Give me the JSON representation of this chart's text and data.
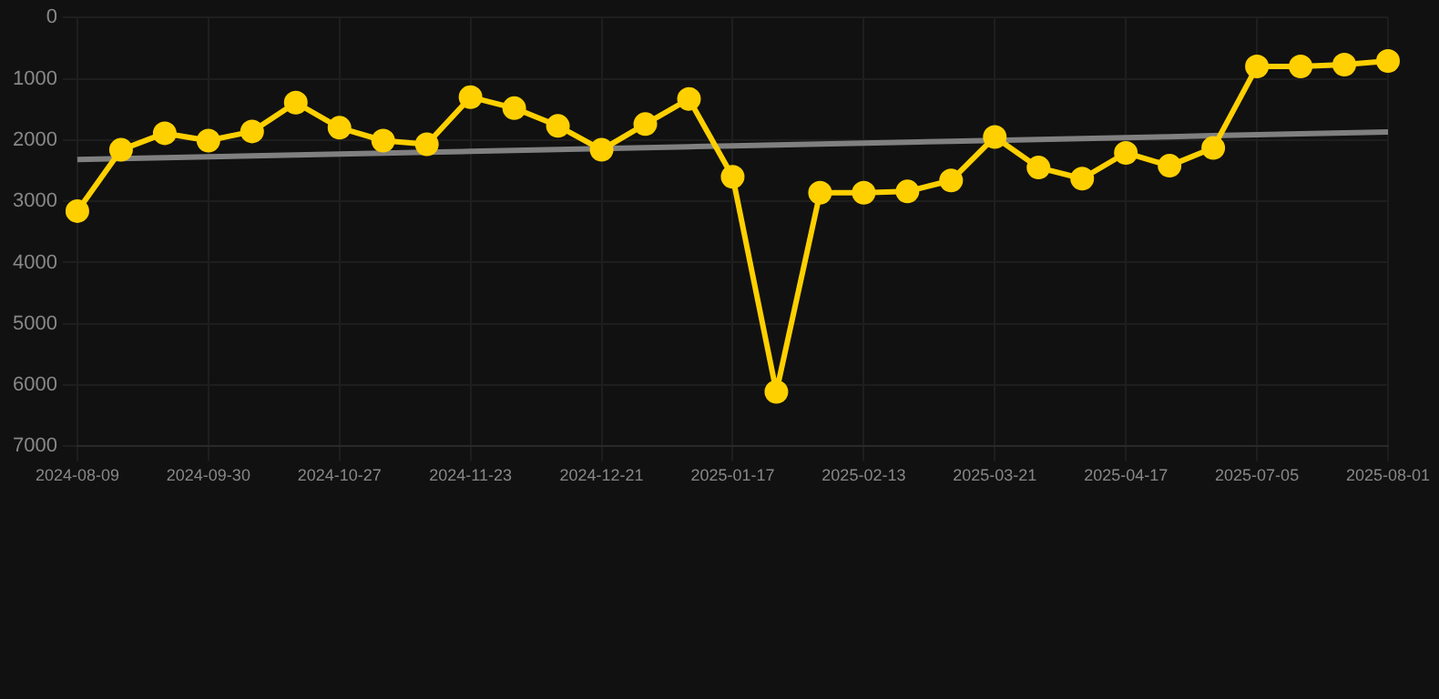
{
  "chart_data": {
    "type": "line",
    "categories": [
      "2024-08-09",
      null,
      null,
      "2024-09-30",
      null,
      null,
      "2024-10-27",
      null,
      null,
      "2024-11-23",
      null,
      null,
      "2024-12-21",
      null,
      null,
      "2025-01-17",
      null,
      null,
      "2025-02-13",
      null,
      null,
      "2025-03-21",
      null,
      null,
      "2025-04-17",
      null,
      null,
      "2025-07-05",
      null,
      null,
      "2025-08-01"
    ],
    "series": [
      {
        "type": "line",
        "color": "#ffd000",
        "marker": "circle",
        "values": [
          3160,
          2160,
          1890,
          2010,
          1860,
          1390,
          1800,
          2010,
          2070,
          1300,
          1480,
          1770,
          2160,
          1740,
          1330,
          2600,
          6110,
          2860,
          2860,
          2840,
          2660,
          1950,
          2450,
          2630,
          2210,
          2420,
          2130,
          800,
          800,
          770,
          710
        ]
      },
      {
        "type": "line",
        "color": "#808080",
        "marker": "none",
        "values": [
          2320,
          2305,
          2290,
          2275,
          2260,
          2245,
          2230,
          2215,
          2200,
          2185,
          2170,
          2155,
          2140,
          2125,
          2110,
          2095,
          2080,
          2065,
          2050,
          2035,
          2020,
          2005,
          1990,
          1975,
          1960,
          1945,
          1930,
          1915,
          1900,
          1885,
          1870
        ]
      }
    ],
    "ylim": [
      7000,
      0
    ],
    "yticks": [
      0,
      1000,
      2000,
      3000,
      4000,
      5000,
      6000,
      7000
    ],
    "grid": true,
    "legend": false
  }
}
